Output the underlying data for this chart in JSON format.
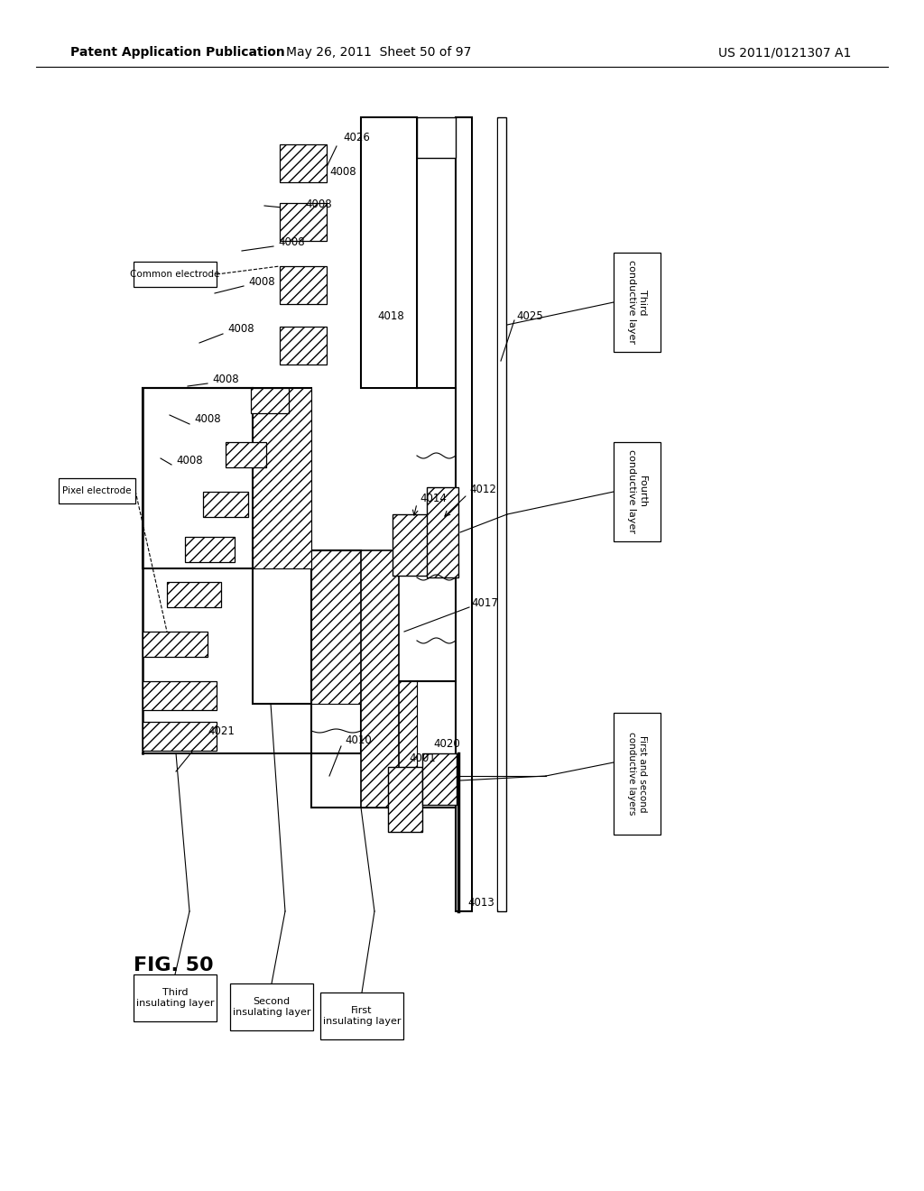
{
  "header_left": "Patent Application Publication",
  "header_center": "May 26, 2011  Sheet 50 of 97",
  "header_right": "US 2011/0121307 A1",
  "fig_label": "FIG. 50",
  "bg_color": "#ffffff"
}
